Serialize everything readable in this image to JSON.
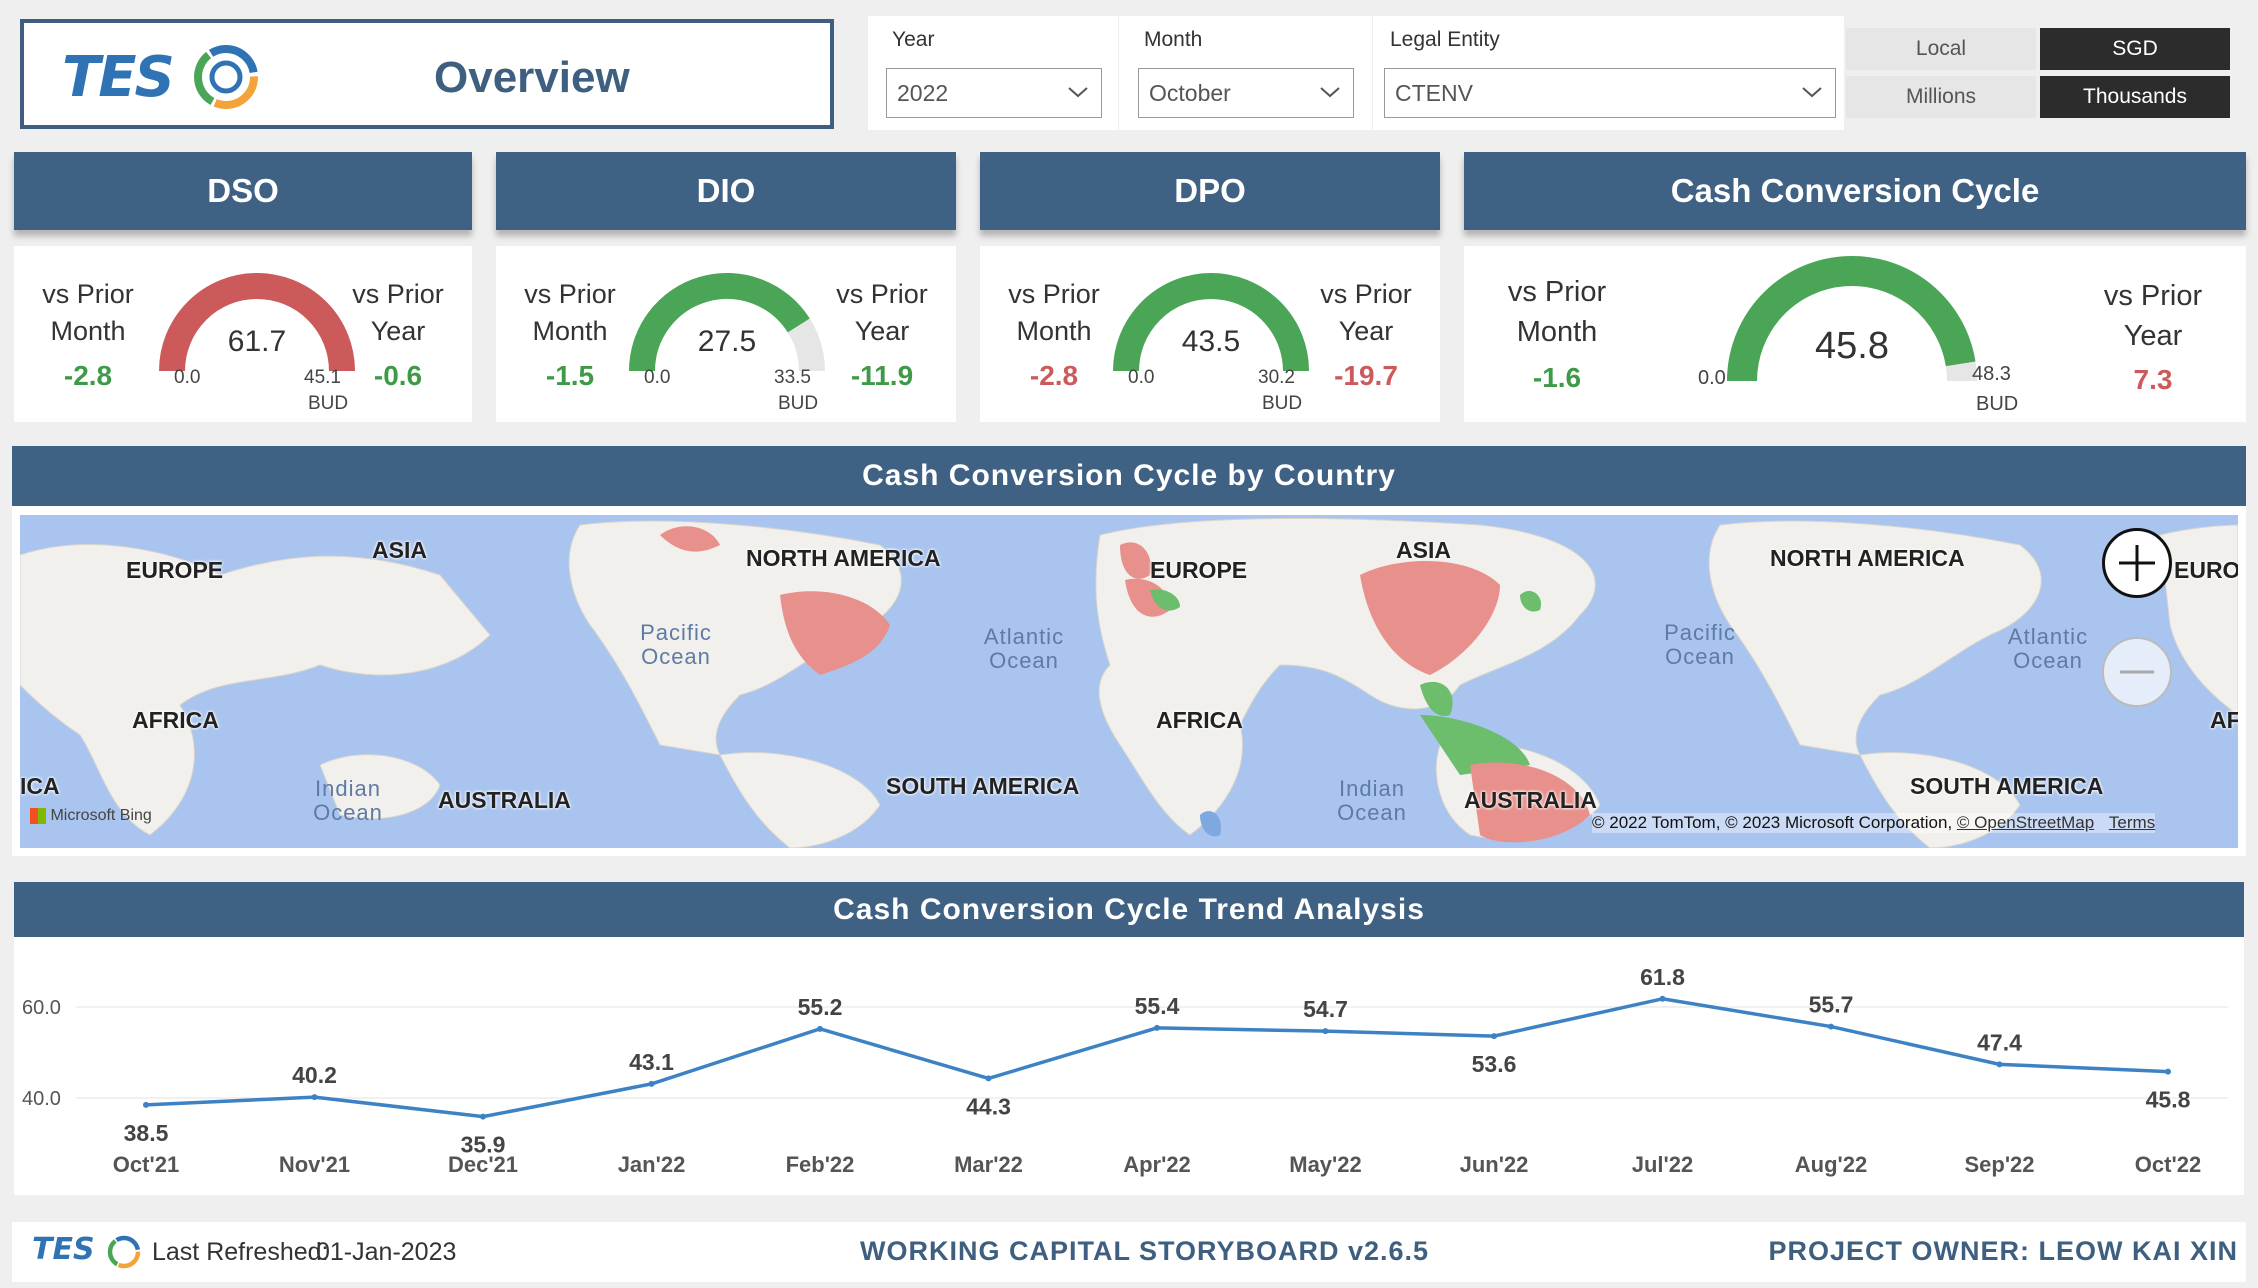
{
  "header": {
    "logo_text": "TES",
    "page_title": "Overview"
  },
  "filters": {
    "year_label": "Year",
    "year_value": "2022",
    "month_label": "Month",
    "month_value": "October",
    "entity_label": "Legal Entity",
    "entity_value": "CTENV",
    "currency_options": [
      "Local",
      "SGD"
    ],
    "currency_selected": "SGD",
    "unit_options": [
      "Millions",
      "Thousands"
    ],
    "unit_selected": "Thousands"
  },
  "kpis": [
    {
      "title": "DSO",
      "prior_month_label": "vs Prior Month",
      "prior_month_value": "-2.8",
      "prior_year_label": "vs Prior Year",
      "prior_year_value": "-0.6",
      "gauge_value": "61.7",
      "gauge_min": "0.0",
      "gauge_target": "45.1",
      "target_label": "BUD",
      "fill_fraction": 1.0,
      "gauge_color": "#cd5a5a",
      "pm_color": "#3f9a48",
      "py_color": "#3f9a48"
    },
    {
      "title": "DIO",
      "prior_month_label": "vs Prior Month",
      "prior_month_value": "-1.5",
      "prior_year_label": "vs Prior Year",
      "prior_year_value": "-11.9",
      "gauge_value": "27.5",
      "gauge_min": "0.0",
      "gauge_target": "33.5",
      "target_label": "BUD",
      "fill_fraction": 0.82,
      "gauge_color": "#4aa656",
      "pm_color": "#3f9a48",
      "py_color": "#3f9a48"
    },
    {
      "title": "DPO",
      "prior_month_label": "vs Prior Month",
      "prior_month_value": "-2.8",
      "prior_year_label": "vs Prior Year",
      "prior_year_value": "-19.7",
      "gauge_value": "43.5",
      "gauge_min": "0.0",
      "gauge_target": "30.2",
      "target_label": "BUD",
      "fill_fraction": 1.0,
      "gauge_color": "#4aa656",
      "pm_color": "#cd5a5a",
      "py_color": "#cd5a5a"
    },
    {
      "title": "Cash Conversion Cycle",
      "prior_month_label": "vs Prior Month",
      "prior_month_value": "-1.6",
      "prior_year_label": "vs Prior Year",
      "prior_year_value": "7.3",
      "gauge_value": "45.8",
      "gauge_min": "0.0",
      "gauge_target": "48.3",
      "target_label": "BUD",
      "fill_fraction": 0.95,
      "gauge_color": "#4aa656",
      "pm_color": "#3f9a48",
      "py_color": "#cd5a5a"
    }
  ],
  "map": {
    "title": "Cash Conversion Cycle by Country",
    "continents": [
      "EUROPE",
      "ASIA",
      "NORTH AMERICA",
      "EUROPE",
      "ASIA",
      "NORTH AMERICA",
      "EURO",
      "AFRICA",
      "AFRICA",
      "AFRI",
      "SOUTH AMERICA",
      "SOUTH AMERICA",
      "AUSTRALIA",
      "AUSTRALIA",
      "ICA"
    ],
    "oceans": [
      "Pacific Ocean",
      "Atlantic Ocean",
      "Indian Ocean",
      "Pacific Ocean",
      "Atlantic Ocean",
      "Indian Ocean"
    ],
    "attribution": "© 2022 TomTom, © 2023 Microsoft Corporation,",
    "osm_link": "© OpenStreetMap",
    "terms_link": "Terms",
    "bing_label": "Microsoft Bing",
    "colors": {
      "high": "#e8908c",
      "low": "#6cbd6c",
      "land": "#f2f0ec",
      "water": "#a9c4ee"
    }
  },
  "trend": {
    "title": "Cash Conversion Cycle Trend Analysis"
  },
  "chart_data": {
    "type": "line",
    "categories": [
      "Oct'21",
      "Nov'21",
      "Dec'21",
      "Jan'22",
      "Feb'22",
      "Mar'22",
      "Apr'22",
      "May'22",
      "Jun'22",
      "Jul'22",
      "Aug'22",
      "Sep'22",
      "Oct'22"
    ],
    "series": [
      {
        "values": [
          38.5,
          40.2,
          35.9,
          43.1,
          55.2,
          44.3,
          55.4,
          54.7,
          53.6,
          61.8,
          55.7,
          47.4,
          45.8
        ]
      }
    ],
    "labels": [
      "38.5",
      "40.2",
      "35.9",
      "43.1",
      "55.2",
      "44.3",
      "55.4",
      "54.7",
      "53.6",
      "61.8",
      "55.7",
      "47.4",
      "45.8"
    ],
    "yticks": [
      "40.0",
      "60.0"
    ],
    "ylim": [
      20,
      66
    ],
    "line_color": "#3c82c4",
    "grid": true
  },
  "footer": {
    "logo_text": "TES",
    "refreshed_label": "Last Refreshed:",
    "refreshed_date": "01-Jan-2023",
    "storyboard": "WORKING CAPITAL STORYBOARD v2.6.5",
    "owner": "PROJECT OWNER: LEOW KAI XIN"
  }
}
